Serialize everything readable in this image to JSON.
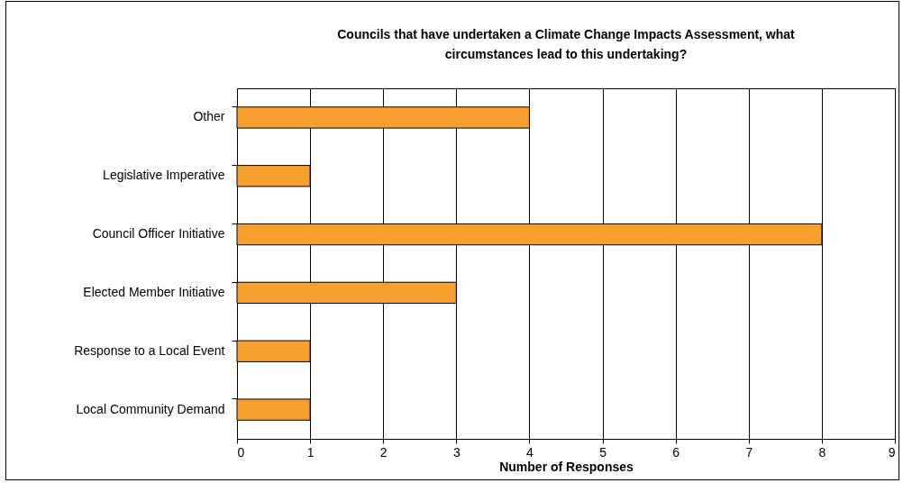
{
  "chart_data": {
    "type": "bar",
    "orientation": "horizontal",
    "title": "Councils that have undertaken a Climate Change Impacts Assessment, what circumstances lead to this undertaking?",
    "xlabel": "Number of Responses",
    "categories": [
      "Other",
      "Legislative Imperative",
      "Council Officer Initiative",
      "Elected Member Initiative",
      "Response to a Local Event",
      "Local Community Demand"
    ],
    "values": [
      4,
      1,
      8,
      3,
      1,
      1
    ],
    "color": "#f7a030",
    "xlim": [
      0,
      9
    ],
    "xticks": [
      0,
      1,
      2,
      3,
      4,
      5,
      6,
      7,
      8,
      9
    ],
    "grid": "x"
  }
}
